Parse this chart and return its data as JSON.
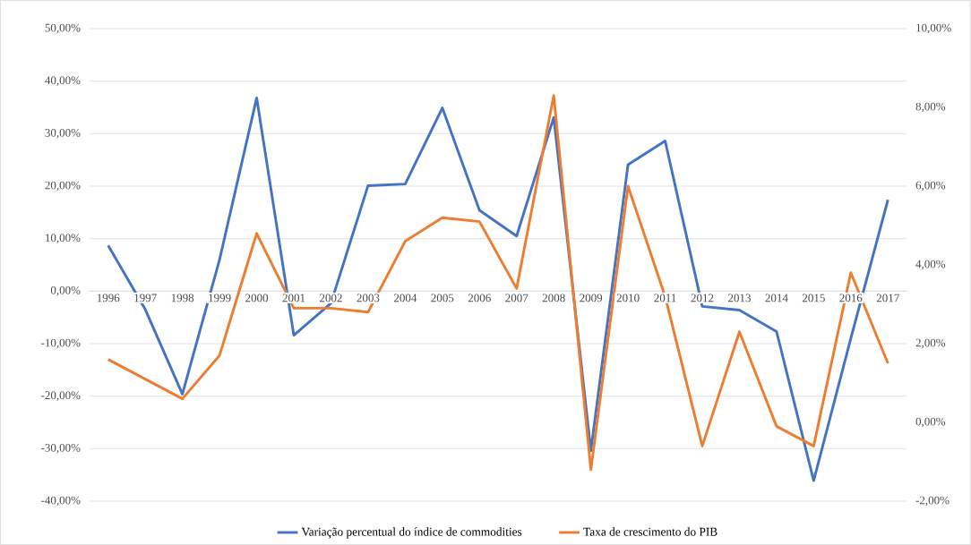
{
  "chart_data": {
    "type": "line",
    "categories": [
      "1996",
      "1997",
      "1998",
      "1999",
      "2000",
      "2001",
      "2002",
      "2003",
      "2004",
      "2005",
      "2006",
      "2007",
      "2008",
      "2009",
      "2010",
      "2011",
      "2012",
      "2013",
      "2014",
      "2015",
      "2016",
      "2017"
    ],
    "series": [
      {
        "name": "Variação percentual do índice de commodities",
        "color": "#4472c4",
        "values": [
          8.7,
          -3.5,
          -19.6,
          6,
          36.8,
          -8.4,
          -2.3,
          20.1,
          20.4,
          34.9,
          15.4,
          10.5,
          33.1,
          -30.4,
          24.1,
          28.6,
          -2.9,
          -3.6,
          -7.7,
          -36.1,
          -9,
          17.4
        ]
      },
      {
        "name": "Taxa de crescimento do PIB",
        "color": "#ed7d31",
        "axis": "y2",
        "values": [
          1.6,
          1.1,
          0.6,
          1.7,
          4.8,
          2.9,
          2.9,
          2.8,
          4.6,
          5.2,
          5.1,
          3.4,
          8.3,
          -1.2,
          6.0,
          3.2,
          -0.6,
          2.3,
          -0.1,
          -0.6,
          3.8,
          1.5
        ]
      }
    ],
    "ylim": [
      -40,
      50
    ],
    "yticks": [
      {
        "value": -40,
        "label": "-40,00%"
      },
      {
        "value": -30,
        "label": "-30,00%"
      },
      {
        "value": -20,
        "label": "-20,00%"
      },
      {
        "value": -10,
        "label": "-10,00%"
      },
      {
        "value": 0,
        "label": "0,00%"
      },
      {
        "value": 10,
        "label": "10,00%"
      },
      {
        "value": 20,
        "label": "20,00%"
      },
      {
        "value": 30,
        "label": "30,00%"
      },
      {
        "value": 40,
        "label": "40,00%"
      },
      {
        "value": 50,
        "label": "50,00%"
      }
    ],
    "y2lim": [
      -2,
      10
    ],
    "y2ticks": [
      {
        "value": -2,
        "label": "-2,00%"
      },
      {
        "value": 0,
        "label": "0,00%"
      },
      {
        "value": 2,
        "label": "2,00%"
      },
      {
        "value": 4,
        "label": "4,00%"
      },
      {
        "value": 6,
        "label": "6,00%"
      },
      {
        "value": 8,
        "label": "8,00%"
      },
      {
        "value": 10,
        "label": "10,00%"
      }
    ],
    "grid": "y",
    "legend": "bottom"
  }
}
